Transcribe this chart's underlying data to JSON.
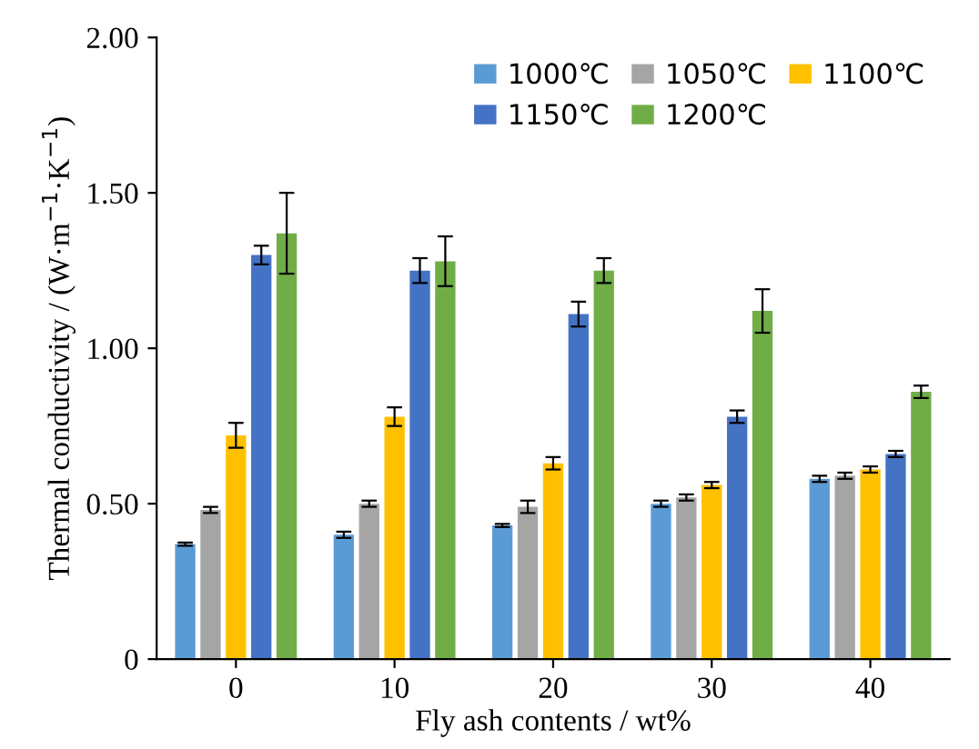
{
  "chart_data": {
    "type": "bar",
    "xlabel": "Fly ash contents / wt%",
    "ylabel": "Thermal conductivity / (W·m$^{−1}$·K$^{−1}$)",
    "categories": [
      "0",
      "10",
      "20",
      "30",
      "40"
    ],
    "series": [
      {
        "name": "1000℃",
        "color": "#5b9bd5",
        "values": [
          0.37,
          0.4,
          0.43,
          0.5,
          0.58
        ],
        "errors": [
          0.005,
          0.01,
          0.005,
          0.01,
          0.01
        ]
      },
      {
        "name": "1050℃",
        "color": "#a5a5a5",
        "values": [
          0.48,
          0.5,
          0.49,
          0.52,
          0.59
        ],
        "errors": [
          0.01,
          0.01,
          0.02,
          0.01,
          0.01
        ]
      },
      {
        "name": "1100℃",
        "color": "#ffc000",
        "values": [
          0.72,
          0.78,
          0.63,
          0.56,
          0.61
        ],
        "errors": [
          0.04,
          0.03,
          0.02,
          0.01,
          0.01
        ]
      },
      {
        "name": "1150℃",
        "color": "#4472c4",
        "values": [
          1.3,
          1.25,
          1.11,
          0.78,
          0.66
        ],
        "errors": [
          0.03,
          0.04,
          0.04,
          0.02,
          0.01
        ]
      },
      {
        "name": "1200℃",
        "color": "#70ad47",
        "values": [
          1.37,
          1.28,
          1.25,
          1.12,
          0.86
        ],
        "errors": [
          0.13,
          0.08,
          0.04,
          0.07,
          0.02
        ]
      }
    ],
    "ylim": [
      0,
      2.0
    ],
    "yticks": [
      {
        "value": 0,
        "label": "0"
      },
      {
        "value": 0.5,
        "label": "0.50"
      },
      {
        "value": 1.0,
        "label": "1.00"
      },
      {
        "value": 1.5,
        "label": "1.50"
      },
      {
        "value": 2.0,
        "label": "2.00"
      }
    ],
    "grid": false,
    "legend": "top right"
  }
}
